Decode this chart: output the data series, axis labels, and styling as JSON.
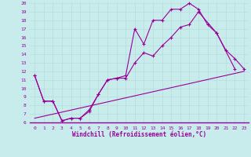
{
  "xlabel": "Windchill (Refroidissement éolien,°C)",
  "background_color": "#c8ecec",
  "grid_color": "#aadddd",
  "line_color": "#990099",
  "xlim": [
    -0.5,
    23.5
  ],
  "ylim": [
    6,
    20.2
  ],
  "xticks": [
    0,
    1,
    2,
    3,
    4,
    5,
    6,
    7,
    8,
    9,
    10,
    11,
    12,
    13,
    14,
    15,
    16,
    17,
    18,
    19,
    20,
    21,
    22,
    23
  ],
  "yticks": [
    6,
    7,
    8,
    9,
    10,
    11,
    12,
    13,
    14,
    15,
    16,
    17,
    18,
    19,
    20
  ],
  "series1_x": [
    0,
    1,
    2,
    3,
    4,
    5,
    6,
    7,
    8,
    9,
    10,
    11,
    12,
    13,
    14,
    15,
    16,
    17,
    18,
    19,
    20,
    22
  ],
  "series1_y": [
    11.5,
    8.5,
    8.5,
    6.2,
    6.5,
    6.5,
    7.5,
    9.3,
    11.0,
    11.2,
    11.5,
    17.0,
    15.2,
    18.0,
    18.0,
    19.3,
    19.3,
    20.0,
    19.3,
    17.5,
    16.5,
    12.3
  ],
  "series2_x": [
    0,
    1,
    2,
    3,
    4,
    5,
    6,
    7,
    8,
    9,
    10,
    11,
    12,
    13,
    14,
    15,
    16,
    17,
    18,
    20,
    21,
    22,
    23
  ],
  "series2_y": [
    11.5,
    8.5,
    8.5,
    6.2,
    6.5,
    6.5,
    7.3,
    9.3,
    11.0,
    11.2,
    11.2,
    13.0,
    14.2,
    13.8,
    15.0,
    16.0,
    17.2,
    17.5,
    19.0,
    16.5,
    14.5,
    13.5,
    12.3
  ],
  "series3_x": [
    0,
    23
  ],
  "series3_y": [
    6.5,
    12.0
  ]
}
